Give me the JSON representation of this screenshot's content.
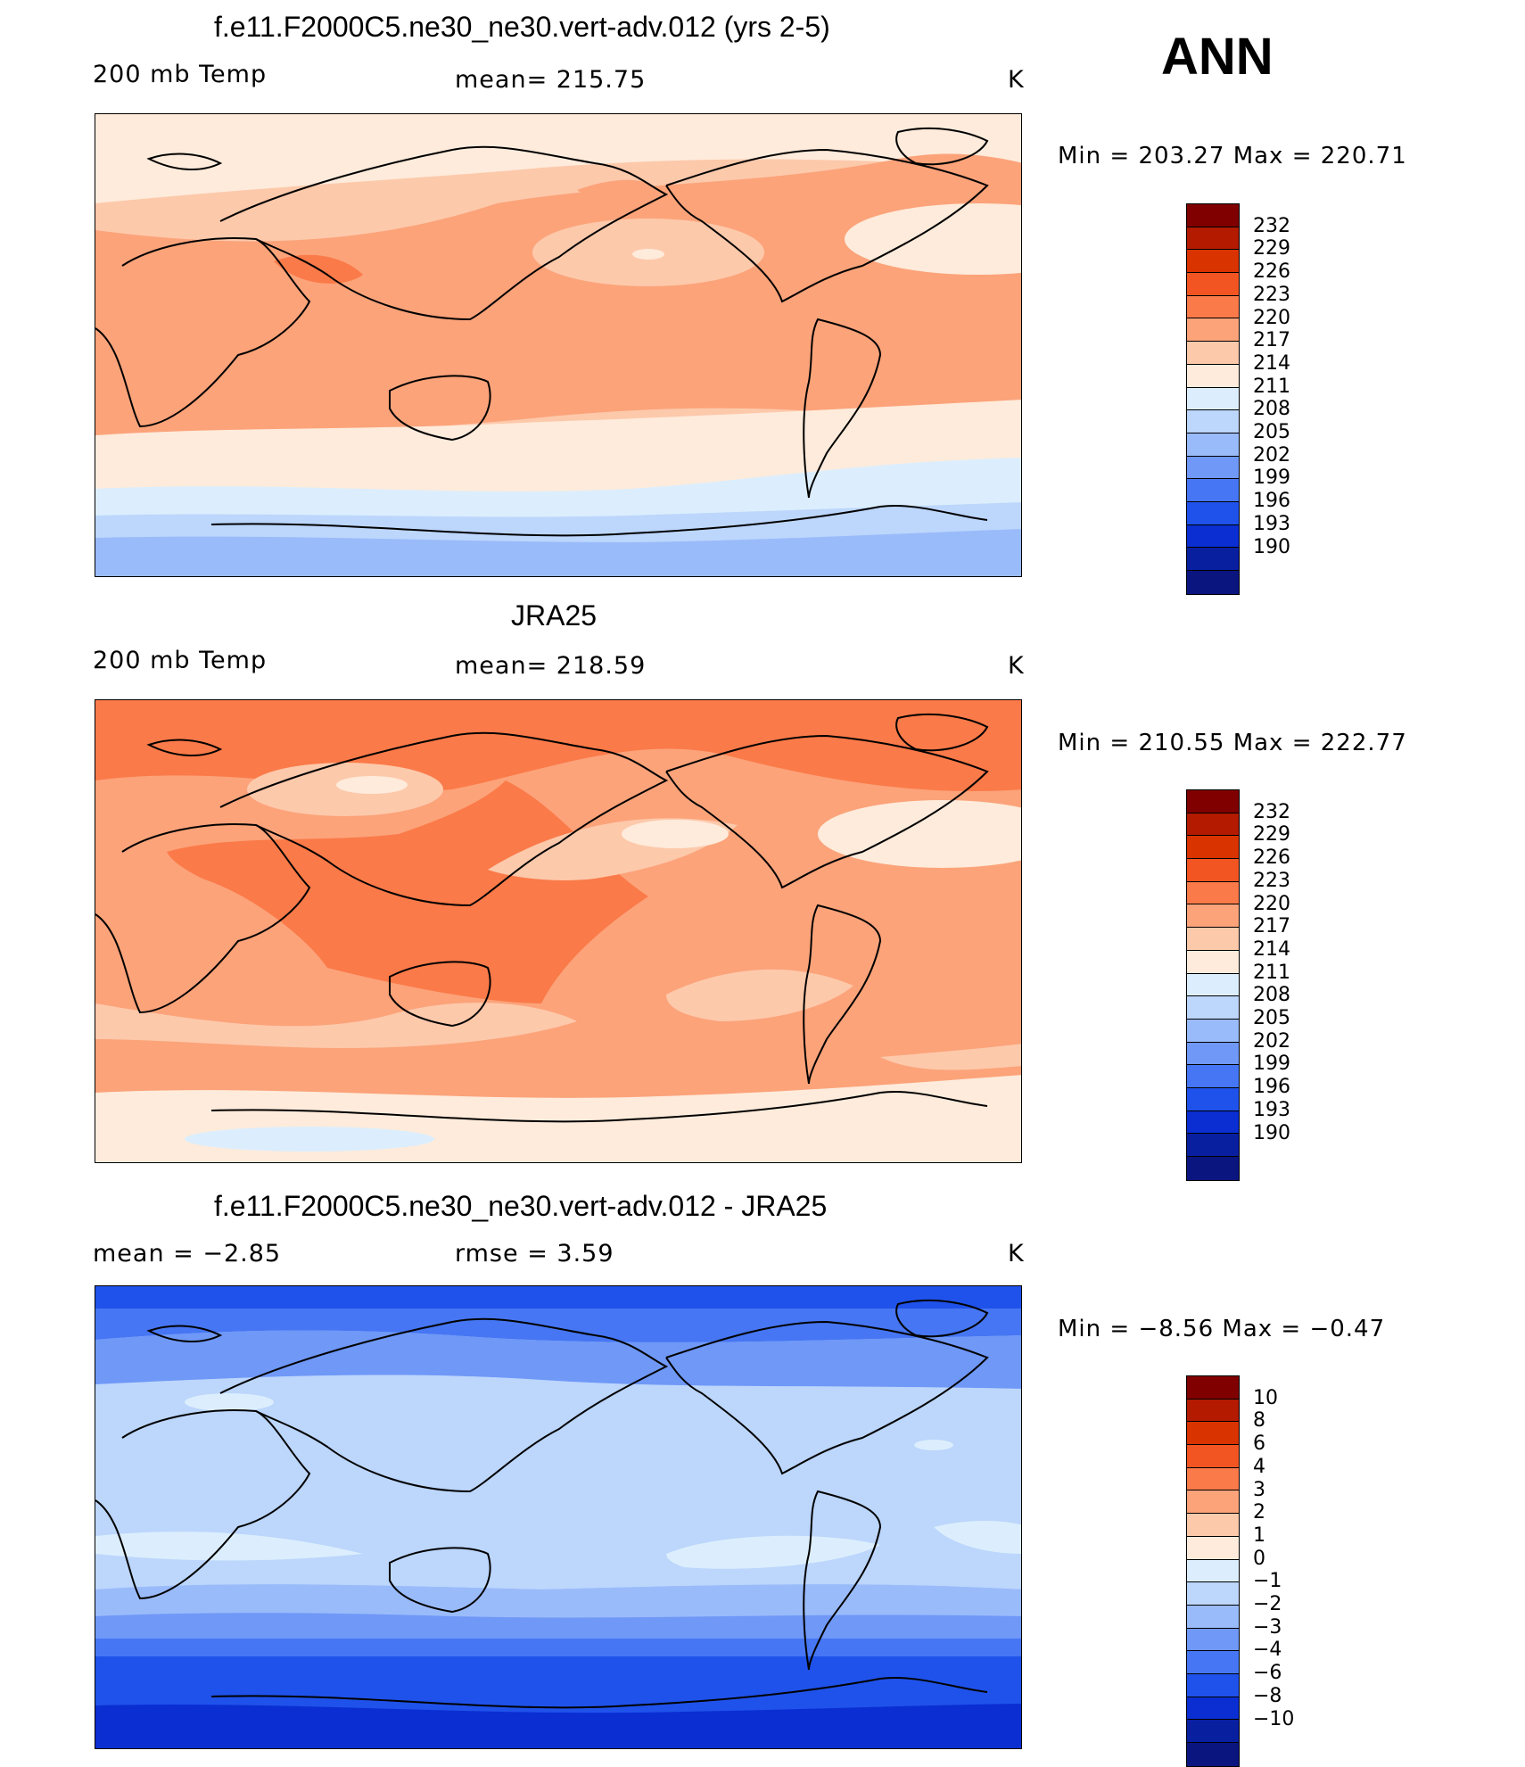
{
  "season": "ANN",
  "panels": [
    {
      "title": "f.e11.F2000C5.ne30_ne30.vert-adv.012 (yrs 2-5)",
      "left_label": "200 mb Temp",
      "center_label": "mean=  215.75",
      "units": "K",
      "minmax": "Min  =  203.27  Max  =  220.71",
      "colorbar_labels": [
        "232",
        "229",
        "226",
        "223",
        "220",
        "217",
        "214",
        "211",
        "208",
        "205",
        "202",
        "199",
        "196",
        "193",
        "190"
      ]
    },
    {
      "title": "JRA25",
      "left_label": "200 mb Temp",
      "center_label": "mean=  218.59",
      "units": "K",
      "minmax": "Min  =  210.55  Max  =  222.77",
      "colorbar_labels": [
        "232",
        "229",
        "226",
        "223",
        "220",
        "217",
        "214",
        "211",
        "208",
        "205",
        "202",
        "199",
        "196",
        "193",
        "190"
      ]
    },
    {
      "title": "f.e11.F2000C5.ne30_ne30.vert-adv.012 - JRA25",
      "left_label": "mean =    −2.85",
      "center_label": "rmse =     3.59",
      "units": "K",
      "minmax": "Min  =    −8.56  Max  =    −0.47",
      "colorbar_labels": [
        "10",
        "8",
        "6",
        "4",
        "3",
        "2",
        "1",
        "0",
        "−1",
        "−2",
        "−3",
        "−4",
        "−6",
        "−8",
        "−10"
      ]
    }
  ],
  "colors": {
    "colorbar": [
      "#800000",
      "#b31a00",
      "#d93300",
      "#f25522",
      "#fb7a49",
      "#fca37a",
      "#fdc9ab",
      "#feebdb",
      "#dceefd",
      "#bcd6fc",
      "#9abbfa",
      "#6f98f7",
      "#4676f3",
      "#1f52ea",
      "#0a2ed2",
      "#081fa0",
      "#0a1580"
    ],
    "land_outline": "#000000"
  }
}
